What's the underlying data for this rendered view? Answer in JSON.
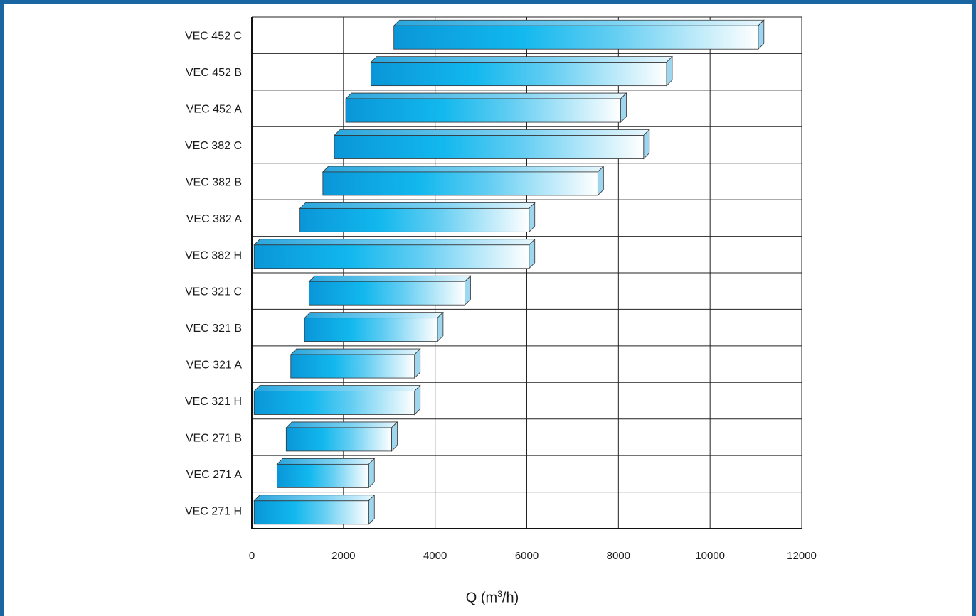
{
  "chart_data": {
    "type": "bar",
    "orientation": "horizontal",
    "style": "floating range bars",
    "categories": [
      "VEC 452 C",
      "VEC 452 B",
      "VEC 452 A",
      "VEC 382 C",
      "VEC 382 B",
      "VEC 382 A",
      "VEC 382 H",
      "VEC 321 C",
      "VEC 321 B",
      "VEC 321 A",
      "VEC 321 H",
      "VEC 271 B",
      "VEC 271 A",
      "VEC 271 H"
    ],
    "ranges": [
      [
        3100,
        11050
      ],
      [
        2600,
        9050
      ],
      [
        2050,
        8050
      ],
      [
        1800,
        8550
      ],
      [
        1550,
        7550
      ],
      [
        1050,
        6050
      ],
      [
        50,
        6050
      ],
      [
        1250,
        4650
      ],
      [
        1150,
        4050
      ],
      [
        850,
        3550
      ],
      [
        50,
        3550
      ],
      [
        750,
        3050
      ],
      [
        550,
        2550
      ],
      [
        50,
        2550
      ]
    ],
    "xlim": [
      0,
      12000
    ],
    "xticks": [
      "0",
      "2000",
      "4000",
      "6000",
      "8000",
      "10000",
      "12000"
    ],
    "xlabel": {
      "base": "Q (m",
      "sup": "3",
      "tail": "/h)"
    },
    "grid": true,
    "colors": {
      "bar_dark": "#0a96d8",
      "bar_mid": "#12b8ee",
      "bar_light": "#ffffff",
      "bar_top": "#4ab9e8",
      "bar_side": "#9fd6ef",
      "frame": "#1a66a3"
    }
  }
}
